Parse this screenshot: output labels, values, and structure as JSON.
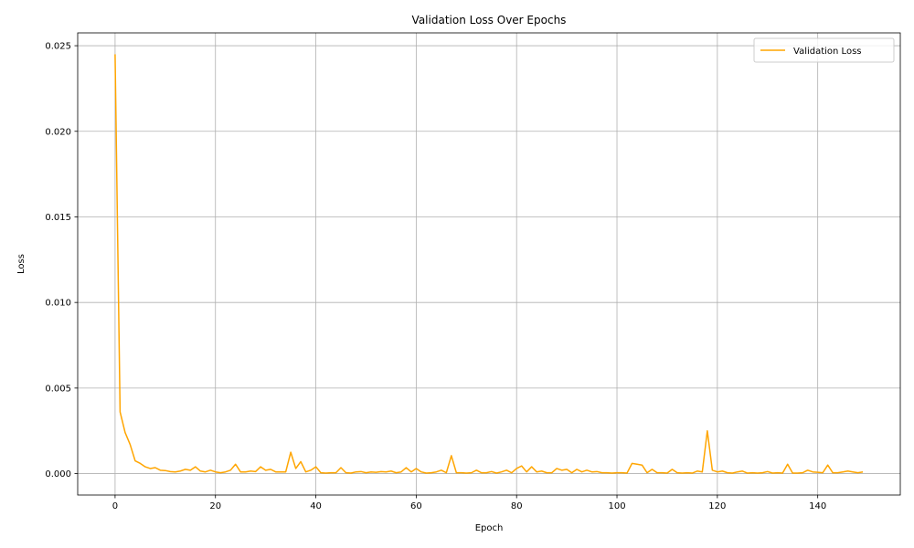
{
  "chart_data": {
    "type": "line",
    "title": "Validation Loss Over Epochs",
    "xlabel": "Epoch",
    "ylabel": "Loss",
    "xlim": [
      -7.45,
      156.45
    ],
    "ylim": [
      -0.00125,
      0.02575
    ],
    "x_ticks": [
      0,
      20,
      40,
      60,
      80,
      100,
      120,
      140
    ],
    "y_ticks": [
      0,
      0.005,
      0.01,
      0.015,
      0.02,
      0.025
    ],
    "y_tick_labels": [
      "0.000",
      "0.005",
      "0.010",
      "0.015",
      "0.020",
      "0.025"
    ],
    "grid": true,
    "legend_position": "top-right",
    "series": [
      {
        "name": "Validation Loss",
        "color": "#FFA500",
        "x": [
          0,
          1,
          2,
          3,
          4,
          5,
          6,
          7,
          8,
          9,
          10,
          11,
          12,
          13,
          14,
          15,
          16,
          17,
          18,
          19,
          20,
          21,
          22,
          23,
          24,
          25,
          26,
          27,
          28,
          29,
          30,
          31,
          32,
          33,
          34,
          35,
          36,
          37,
          38,
          39,
          40,
          41,
          42,
          43,
          44,
          45,
          46,
          47,
          48,
          49,
          50,
          51,
          52,
          53,
          54,
          55,
          56,
          57,
          58,
          59,
          60,
          61,
          62,
          63,
          64,
          65,
          66,
          67,
          68,
          69,
          70,
          71,
          72,
          73,
          74,
          75,
          76,
          77,
          78,
          79,
          80,
          81,
          82,
          83,
          84,
          85,
          86,
          87,
          88,
          89,
          90,
          91,
          92,
          93,
          94,
          95,
          96,
          97,
          98,
          99,
          100,
          101,
          102,
          103,
          104,
          105,
          106,
          107,
          108,
          109,
          110,
          111,
          112,
          113,
          114,
          115,
          116,
          117,
          118,
          119,
          120,
          121,
          122,
          123,
          124,
          125,
          126,
          127,
          128,
          129,
          130,
          131,
          132,
          133,
          134,
          135,
          136,
          137,
          138,
          139,
          140,
          141,
          142,
          143,
          144,
          145,
          146,
          147,
          148,
          149
        ],
        "values": [
          0.0245,
          0.0036,
          0.0024,
          0.0017,
          0.00075,
          0.0006,
          0.0004,
          0.0003,
          0.00035,
          0.0002,
          0.00018,
          0.00012,
          0.0001,
          0.00015,
          0.00025,
          0.0002,
          0.0004,
          0.00015,
          0.0001,
          0.0002,
          0.0001,
          5e-05,
          0.0001,
          0.0002,
          0.00055,
          0.0001,
          0.0001,
          0.00015,
          0.00012,
          0.0004,
          0.0002,
          0.00025,
          0.0001,
          0.0001,
          0.0001,
          0.00125,
          0.0003,
          0.0007,
          0.0001,
          0.0002,
          0.0004,
          5e-05,
          3e-05,
          5e-05,
          5e-05,
          0.00035,
          5e-05,
          3e-05,
          0.0001,
          0.00012,
          5e-05,
          0.0001,
          8e-05,
          0.00012,
          0.0001,
          0.00015,
          5e-05,
          0.0001,
          0.00035,
          0.0001,
          0.0003,
          0.0001,
          3e-05,
          5e-05,
          0.0001,
          0.0002,
          5e-05,
          0.00105,
          5e-05,
          5e-05,
          3e-05,
          5e-05,
          0.0002,
          5e-05,
          5e-05,
          0.00012,
          3e-05,
          0.0001,
          0.0002,
          5e-05,
          0.0003,
          0.00045,
          0.0001,
          0.0004,
          0.0001,
          0.00015,
          5e-05,
          5e-05,
          0.0003,
          0.0002,
          0.00025,
          5e-05,
          0.00025,
          0.0001,
          0.0002,
          0.0001,
          0.00012,
          5e-05,
          5e-05,
          3e-05,
          5e-05,
          5e-05,
          3e-05,
          0.0006,
          0.00055,
          0.0005,
          5e-05,
          0.00025,
          5e-05,
          5e-05,
          3e-05,
          0.00025,
          5e-05,
          3e-05,
          5e-05,
          3e-05,
          0.00015,
          0.0001,
          0.0025,
          0.0002,
          0.0001,
          0.00015,
          5e-05,
          3e-05,
          0.0001,
          0.00015,
          3e-05,
          5e-05,
          3e-05,
          5e-05,
          0.00012,
          3e-05,
          5e-05,
          3e-05,
          0.00055,
          3e-05,
          3e-05,
          5e-05,
          0.0002,
          0.0001,
          8e-05,
          5e-05,
          0.0005,
          5e-05,
          5e-05,
          0.0001,
          0.00015,
          0.0001,
          5e-05,
          0.0001
        ]
      }
    ]
  }
}
